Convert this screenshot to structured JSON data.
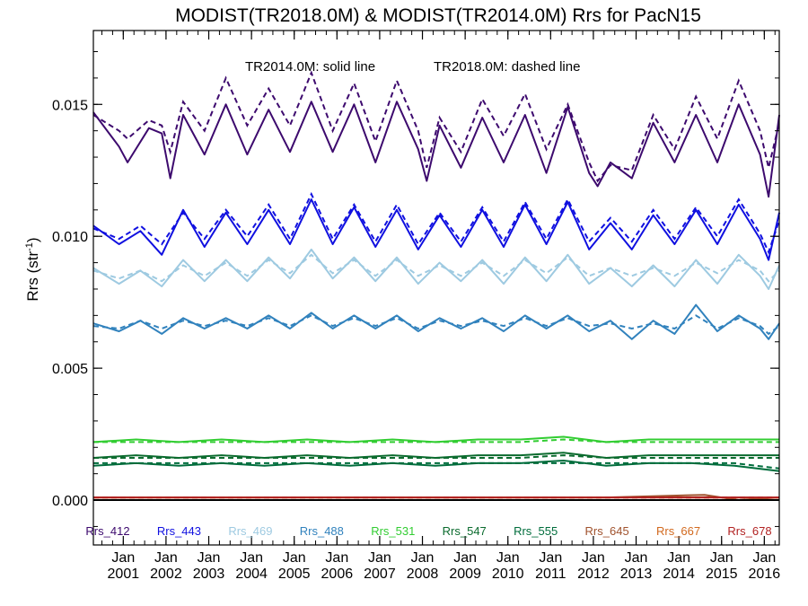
{
  "chart_data": {
    "type": "line",
    "title": "MODIST(TR2018.0M) & MODIST(TR2014.0M)  Rrs for PacN15",
    "annotation": {
      "solid": "TR2014.0M: solid line",
      "dashed": "TR2018.0M: dashed line"
    },
    "ylabel_main": "Rrs (str",
    "ylabel_sup": "-1",
    "ylabel_close": ")",
    "ylim": [
      -0.0017,
      0.0178
    ],
    "xlim": [
      2000.3,
      2016.35
    ],
    "yticks": [
      "0.000",
      "0.005",
      "0.010",
      "0.015"
    ],
    "yticks_values": [
      0.0,
      0.005,
      0.01,
      0.015
    ],
    "xticks": [
      {
        "month": "Jan",
        "year": "2001",
        "x": 2001
      },
      {
        "month": "Jan",
        "year": "2002",
        "x": 2002
      },
      {
        "month": "Jan",
        "year": "2003",
        "x": 2003
      },
      {
        "month": "Jan",
        "year": "2004",
        "x": 2004
      },
      {
        "month": "Jan",
        "year": "2005",
        "x": 2005
      },
      {
        "month": "Jan",
        "year": "2006",
        "x": 2006
      },
      {
        "month": "Jan",
        "year": "2007",
        "x": 2007
      },
      {
        "month": "Jan",
        "year": "2008",
        "x": 2008
      },
      {
        "month": "Jan",
        "year": "2009",
        "x": 2009
      },
      {
        "month": "Jan",
        "year": "2010",
        "x": 2010
      },
      {
        "month": "Jan",
        "year": "2011",
        "x": 2011
      },
      {
        "month": "Jan",
        "year": "2012",
        "x": 2012
      },
      {
        "month": "Jan",
        "year": "2013",
        "x": 2013
      },
      {
        "month": "Jan",
        "year": "2014",
        "x": 2014
      },
      {
        "month": "Jan",
        "year": "2015",
        "x": 2015
      },
      {
        "month": "Jan",
        "year": "2016",
        "x": 2016
      }
    ],
    "legend_placement": "bottom, inside plot",
    "series": [
      {
        "name": "Rrs_412",
        "color": "#3d0a6e",
        "x": [
          2000.3,
          2000.9,
          2001.1,
          2001.6,
          2001.9,
          2002.1,
          2002.4,
          2002.9,
          2003.4,
          2003.9,
          2004.4,
          2004.9,
          2005.4,
          2005.9,
          2006.4,
          2006.9,
          2007.4,
          2007.9,
          2008.1,
          2008.4,
          2008.9,
          2009.4,
          2009.9,
          2010.4,
          2010.9,
          2011.4,
          2011.9,
          2012.1,
          2012.4,
          2012.9,
          2013.4,
          2013.9,
          2014.4,
          2014.9,
          2015.4,
          2015.9,
          2016.1,
          2016.35
        ],
        "solid": [
          0.0147,
          0.0134,
          0.0128,
          0.0141,
          0.0139,
          0.0122,
          0.0146,
          0.0131,
          0.015,
          0.0131,
          0.0148,
          0.0132,
          0.0151,
          0.0132,
          0.015,
          0.0128,
          0.0151,
          0.0133,
          0.0121,
          0.0142,
          0.0126,
          0.0145,
          0.0128,
          0.0146,
          0.0124,
          0.0149,
          0.0124,
          0.0119,
          0.0128,
          0.0122,
          0.0143,
          0.0128,
          0.0146,
          0.0128,
          0.015,
          0.0131,
          0.0115,
          0.0146
        ],
        "dashed": [
          0.0146,
          0.014,
          0.0137,
          0.0144,
          0.0142,
          0.0132,
          0.0151,
          0.014,
          0.016,
          0.0142,
          0.0156,
          0.0142,
          0.0162,
          0.014,
          0.0158,
          0.0136,
          0.0159,
          0.014,
          0.0126,
          0.0145,
          0.0132,
          0.0152,
          0.0138,
          0.0154,
          0.0133,
          0.015,
          0.0128,
          0.0121,
          0.0127,
          0.0125,
          0.0146,
          0.0133,
          0.0153,
          0.0137,
          0.0159,
          0.014,
          0.0126,
          0.0143
        ]
      },
      {
        "name": "Rrs_443",
        "color": "#1010e0",
        "x": [
          2000.3,
          2000.9,
          2001.4,
          2001.9,
          2002.4,
          2002.9,
          2003.4,
          2003.9,
          2004.4,
          2004.9,
          2005.4,
          2005.9,
          2006.4,
          2006.9,
          2007.4,
          2007.9,
          2008.4,
          2008.9,
          2009.4,
          2009.9,
          2010.4,
          2010.9,
          2011.4,
          2011.9,
          2012.4,
          2012.9,
          2013.4,
          2013.9,
          2014.4,
          2014.9,
          2015.4,
          2015.9,
          2016.1,
          2016.35
        ],
        "solid": [
          0.0104,
          0.0097,
          0.0102,
          0.0093,
          0.011,
          0.0096,
          0.0109,
          0.0097,
          0.011,
          0.0097,
          0.0114,
          0.0097,
          0.0111,
          0.0096,
          0.011,
          0.0095,
          0.0108,
          0.0096,
          0.011,
          0.0096,
          0.0112,
          0.0097,
          0.0113,
          0.0095,
          0.0105,
          0.0095,
          0.0108,
          0.0097,
          0.011,
          0.0097,
          0.0112,
          0.0099,
          0.0091,
          0.0109
        ],
        "dashed": [
          0.0103,
          0.0099,
          0.0104,
          0.0097,
          0.0109,
          0.0099,
          0.011,
          0.01,
          0.0112,
          0.0099,
          0.0116,
          0.0099,
          0.0112,
          0.0098,
          0.0112,
          0.0097,
          0.0109,
          0.0098,
          0.0111,
          0.0098,
          0.0113,
          0.0099,
          0.0114,
          0.0098,
          0.0107,
          0.0098,
          0.011,
          0.0099,
          0.0111,
          0.01,
          0.0114,
          0.0101,
          0.0094,
          0.0106
        ]
      },
      {
        "name": "Rrs_469",
        "color": "#9ecae1",
        "x": [
          2000.3,
          2000.9,
          2001.4,
          2001.9,
          2002.4,
          2002.9,
          2003.4,
          2003.9,
          2004.4,
          2004.9,
          2005.4,
          2005.9,
          2006.4,
          2006.9,
          2007.4,
          2007.9,
          2008.4,
          2008.9,
          2009.4,
          2009.9,
          2010.4,
          2010.9,
          2011.4,
          2011.9,
          2012.4,
          2012.9,
          2013.4,
          2013.9,
          2014.4,
          2014.9,
          2015.4,
          2015.9,
          2016.1,
          2016.35
        ],
        "solid": [
          0.0088,
          0.0082,
          0.0087,
          0.0081,
          0.0091,
          0.0083,
          0.0091,
          0.0083,
          0.0092,
          0.0084,
          0.0095,
          0.0084,
          0.0092,
          0.0083,
          0.0092,
          0.0082,
          0.009,
          0.0083,
          0.0091,
          0.0082,
          0.0092,
          0.0083,
          0.0093,
          0.0082,
          0.0088,
          0.0081,
          0.0089,
          0.0081,
          0.0091,
          0.0082,
          0.0093,
          0.0085,
          0.008,
          0.0089
        ],
        "dashed": [
          0.0087,
          0.0084,
          0.0087,
          0.0083,
          0.0089,
          0.0085,
          0.009,
          0.0085,
          0.0091,
          0.0086,
          0.0093,
          0.0086,
          0.0091,
          0.0085,
          0.0091,
          0.0085,
          0.0089,
          0.0085,
          0.009,
          0.0085,
          0.0091,
          0.0086,
          0.0092,
          0.0085,
          0.0088,
          0.0085,
          0.0088,
          0.0085,
          0.009,
          0.0086,
          0.0091,
          0.0087,
          0.0083,
          0.0087
        ]
      },
      {
        "name": "Rrs_488",
        "color": "#3182bd",
        "x": [
          2000.3,
          2000.9,
          2001.4,
          2001.9,
          2002.4,
          2002.9,
          2003.4,
          2003.9,
          2004.4,
          2004.9,
          2005.4,
          2005.9,
          2006.4,
          2006.9,
          2007.4,
          2007.9,
          2008.4,
          2008.9,
          2009.4,
          2009.9,
          2010.4,
          2010.9,
          2011.4,
          2011.9,
          2012.4,
          2012.9,
          2013.4,
          2013.9,
          2014.4,
          2014.9,
          2015.4,
          2015.9,
          2016.1,
          2016.35
        ],
        "solid": [
          0.0067,
          0.0064,
          0.0068,
          0.0063,
          0.0069,
          0.0065,
          0.0069,
          0.0065,
          0.007,
          0.0065,
          0.0071,
          0.0065,
          0.007,
          0.0065,
          0.007,
          0.0064,
          0.0069,
          0.0065,
          0.0069,
          0.0064,
          0.007,
          0.0065,
          0.007,
          0.0064,
          0.0068,
          0.0061,
          0.0068,
          0.0063,
          0.0074,
          0.0064,
          0.007,
          0.0065,
          0.0061,
          0.0067
        ],
        "dashed": [
          0.0066,
          0.0065,
          0.0068,
          0.0065,
          0.0068,
          0.0066,
          0.0068,
          0.0066,
          0.0069,
          0.0066,
          0.007,
          0.0066,
          0.0069,
          0.0066,
          0.0069,
          0.0065,
          0.0068,
          0.0066,
          0.0068,
          0.0066,
          0.0069,
          0.0066,
          0.0069,
          0.0066,
          0.0067,
          0.0065,
          0.0067,
          0.0065,
          0.007,
          0.0065,
          0.0069,
          0.0066,
          0.0063,
          0.0066
        ]
      },
      {
        "name": "Rrs_531",
        "color": "#32cd32",
        "x": [
          2000.3,
          2001.3,
          2002.3,
          2003.3,
          2004.3,
          2005.3,
          2006.3,
          2007.3,
          2008.3,
          2009.3,
          2010.3,
          2011.3,
          2012.3,
          2013.3,
          2014.3,
          2015.3,
          2016.35
        ],
        "solid": [
          0.0022,
          0.0023,
          0.0022,
          0.0023,
          0.0022,
          0.0023,
          0.0022,
          0.0023,
          0.0022,
          0.0023,
          0.0023,
          0.0024,
          0.0022,
          0.0023,
          0.0023,
          0.0023,
          0.0023
        ],
        "dashed": [
          0.0022,
          0.0022,
          0.0022,
          0.0022,
          0.0022,
          0.0022,
          0.0022,
          0.0022,
          0.0022,
          0.0022,
          0.0022,
          0.0023,
          0.0022,
          0.0022,
          0.0022,
          0.0022,
          0.0022
        ]
      },
      {
        "name": "Rrs_547",
        "color": "#0b6b2e",
        "x": [
          2000.3,
          2001.3,
          2002.3,
          2003.3,
          2004.3,
          2005.3,
          2006.3,
          2007.3,
          2008.3,
          2009.3,
          2010.3,
          2011.3,
          2012.3,
          2013.3,
          2014.3,
          2015.3,
          2016.35
        ],
        "solid": [
          0.0016,
          0.0017,
          0.0016,
          0.0017,
          0.0016,
          0.0017,
          0.0016,
          0.0017,
          0.0016,
          0.0017,
          0.0017,
          0.0018,
          0.0016,
          0.0017,
          0.0017,
          0.0017,
          0.0017
        ],
        "dashed": [
          0.0016,
          0.0016,
          0.0016,
          0.0016,
          0.0016,
          0.0016,
          0.0016,
          0.0016,
          0.0016,
          0.0016,
          0.0016,
          0.0017,
          0.0016,
          0.0016,
          0.0016,
          0.0016,
          0.0016
        ]
      },
      {
        "name": "Rrs_555",
        "color": "#006d3c",
        "x": [
          2000.3,
          2001.3,
          2002.3,
          2003.3,
          2004.3,
          2005.3,
          2006.3,
          2007.3,
          2008.3,
          2009.3,
          2010.3,
          2011.3,
          2012.3,
          2013.3,
          2014.3,
          2015.3,
          2016.35
        ],
        "solid": [
          0.0013,
          0.0014,
          0.0013,
          0.0014,
          0.0013,
          0.0014,
          0.0013,
          0.0014,
          0.0013,
          0.0014,
          0.0014,
          0.0015,
          0.0013,
          0.0014,
          0.0014,
          0.0013,
          0.0011
        ],
        "dashed": [
          0.0014,
          0.0014,
          0.0014,
          0.0014,
          0.0014,
          0.0014,
          0.0014,
          0.0014,
          0.0014,
          0.0014,
          0.0014,
          0.0014,
          0.0014,
          0.0014,
          0.0014,
          0.0014,
          0.0012
        ]
      },
      {
        "name": "Rrs_645",
        "color": "#a0522d",
        "x": [
          2000.3,
          2004.3,
          2008.3,
          2012.3,
          2014.6,
          2015.4,
          2016.35
        ],
        "solid": [
          0.0001,
          0.0001,
          0.0001,
          0.0001,
          0.0002,
          0.0,
          0.0001
        ],
        "dashed": [
          0.0001,
          0.0001,
          0.0001,
          0.0001,
          0.0001,
          0.0001,
          0.0001
        ]
      },
      {
        "name": "Rrs_667",
        "color": "#d2691e",
        "x": [
          2000.3,
          2004.3,
          2008.3,
          2012.3,
          2016.35
        ],
        "solid": [
          0.0001,
          0.0001,
          0.0001,
          0.0001,
          0.0001
        ],
        "dashed": [
          0.0001,
          0.0001,
          0.0001,
          0.0001,
          0.0001
        ]
      },
      {
        "name": "Rrs_678",
        "color": "#b22222",
        "x": [
          2000.3,
          2004.3,
          2008.3,
          2012.3,
          2016.35
        ],
        "solid": [
          0.0001,
          0.0001,
          0.0001,
          0.0001,
          0.0001
        ],
        "dashed": [
          0.0001,
          0.0001,
          0.0001,
          0.0001,
          0.0001
        ]
      }
    ]
  }
}
